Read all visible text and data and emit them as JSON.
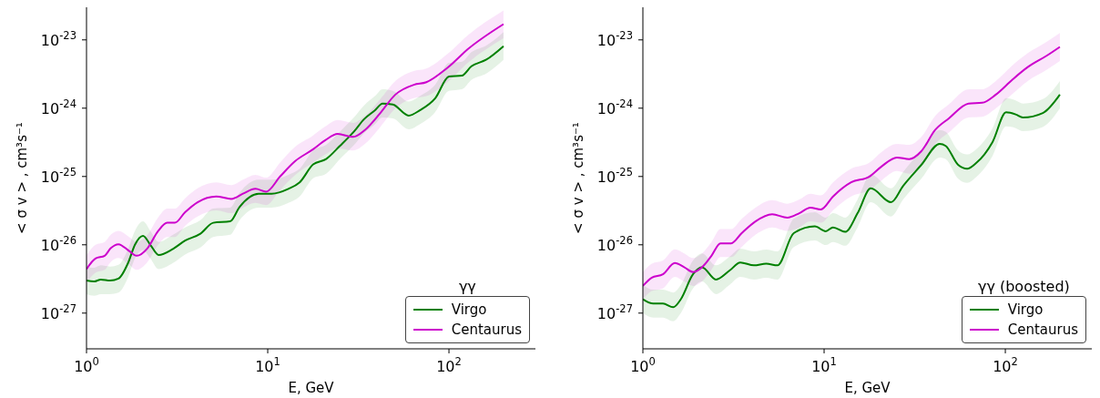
{
  "chart_data": [
    {
      "type": "line",
      "legend_title": "γγ",
      "xlabel": "E, GeV",
      "ylabel": "< σ v > , cm³s⁻¹",
      "log": "xy",
      "legend": "bottom right",
      "xlim": [
        1,
        300
      ],
      "xticks": [
        {
          "value": 1,
          "label": "10$^{0}$"
        },
        {
          "value": 10,
          "label": "10$^{1}$"
        },
        {
          "value": 100,
          "label": "10$^{2}$"
        }
      ],
      "ylim": [
        3e-28,
        3e-23
      ],
      "yticks": [
        {
          "value": 1e-27,
          "label": "10$^{-27}$"
        },
        {
          "value": 1e-26,
          "label": "10$^{-26}$"
        },
        {
          "value": 1e-25,
          "label": "10$^{-25}$"
        },
        {
          "value": 1e-24,
          "label": "10$^{-24}$"
        },
        {
          "value": 1e-23,
          "label": "10$^{-23}$"
        }
      ],
      "series": [
        {
          "name": "Virgo",
          "color": "#008000",
          "x": [
            1,
            1.1,
            1.2,
            1.35,
            1.5,
            1.7,
            1.85,
            2.05,
            2.25,
            2.5,
            3,
            3.5,
            4.25,
            5,
            6.2,
            7,
            8.9,
            10.5,
            13,
            15,
            17.8,
            21,
            25,
            30,
            34,
            39,
            43,
            49,
            60,
            69,
            84,
            100,
            118,
            133,
            160,
            200
          ],
          "values": [
            3e-27,
            2.9e-27,
            3.1e-27,
            3e-27,
            3.2e-27,
            5.5e-27,
            1e-26,
            1.35e-26,
            1e-26,
            7.1e-27,
            8.7e-27,
            1.15e-26,
            1.45e-26,
            2.1e-26,
            2.2e-26,
            3.6e-26,
            5.6e-26,
            5.6e-26,
            6.6e-26,
            8.2e-26,
            1.5e-25,
            1.8e-25,
            2.8e-25,
            4.6e-25,
            6.9e-25,
            9.3e-25,
            1.17e-24,
            1.13e-24,
            7.8e-25,
            9.3e-25,
            1.4e-24,
            2.9e-24,
            3e-24,
            4.1e-24,
            5.1e-24,
            8.1e-24
          ],
          "lower": [
            1.9e-27,
            1.8e-27,
            1.9e-27,
            1.9e-27,
            2e-27,
            3.4e-27,
            6.3e-27,
            8.4e-27,
            6.3e-27,
            4.4e-27,
            5.4e-27,
            7.2e-27,
            9.1e-27,
            1.3e-26,
            1.4e-26,
            2.3e-26,
            3.5e-26,
            3.5e-26,
            4.1e-26,
            5.1e-26,
            9.4e-26,
            1.1e-25,
            1.8e-25,
            2.9e-25,
            4.3e-25,
            5.8e-25,
            7.3e-25,
            7.1e-25,
            4.9e-25,
            5.8e-25,
            8.8e-25,
            1.8e-24,
            1.9e-24,
            2.6e-24,
            3.2e-24,
            5.1e-24
          ],
          "upper": [
            4.8e-27,
            4.6e-27,
            5e-27,
            4.8e-27,
            5.1e-27,
            8.8e-27,
            1.6e-26,
            2.2e-26,
            1.6e-26,
            1.1e-26,
            1.4e-26,
            1.8e-26,
            2.3e-26,
            3.4e-26,
            3.5e-26,
            5.8e-26,
            9e-26,
            9e-26,
            1.06e-25,
            1.3e-25,
            2.4e-25,
            2.9e-25,
            4.5e-25,
            7.4e-25,
            1.1e-24,
            1.5e-24,
            1.9e-24,
            1.8e-24,
            1.25e-24,
            1.5e-24,
            2.2e-24,
            4.6e-24,
            4.8e-24,
            6.6e-24,
            8.2e-24,
            1.3e-23
          ]
        },
        {
          "name": "Centaurus",
          "color": "#cc00cc",
          "x": [
            1,
            1.12,
            1.26,
            1.36,
            1.5,
            1.72,
            1.89,
            2.17,
            2.48,
            2.79,
            3.07,
            3.5,
            4.1,
            5.2,
            6.3,
            7.3,
            8.55,
            9.8,
            11.7,
            14.1,
            17.8,
            20.8,
            24.3,
            29.6,
            34.4,
            41.8,
            50.6,
            64,
            75,
            98,
            127,
            200
          ],
          "values": [
            4.4e-27,
            6.3e-27,
            6.9e-27,
            8.9e-27,
            1.02e-26,
            8.1e-27,
            6.9e-27,
            8.9e-27,
            1.58e-26,
            2.1e-26,
            2.1e-26,
            3e-26,
            4.2e-26,
            5.1e-26,
            4.7e-26,
            5.6e-26,
            6.6e-26,
            6e-26,
            1e-25,
            1.66e-25,
            2.5e-25,
            3.4e-25,
            4.2e-25,
            3.8e-25,
            4.8e-25,
            8.5e-25,
            1.58e-24,
            2.2e-24,
            2.4e-24,
            3.9e-24,
            7.3e-24,
            1.7e-23
          ],
          "lower": [
            2.8e-27,
            3.9e-27,
            4.3e-27,
            5.6e-27,
            6.4e-27,
            5.1e-27,
            4.3e-27,
            5.6e-27,
            9.9e-27,
            1.3e-26,
            1.3e-26,
            1.9e-26,
            2.6e-26,
            3.2e-26,
            2.9e-26,
            3.5e-26,
            4.1e-26,
            3.8e-26,
            6.3e-26,
            1.04e-25,
            1.6e-25,
            2.1e-25,
            2.6e-25,
            2.4e-25,
            3e-25,
            5.3e-25,
            9.9e-25,
            1.4e-24,
            1.5e-24,
            2.4e-24,
            4.6e-24,
            1.06e-23
          ],
          "upper": [
            7e-27,
            1e-26,
            1.1e-26,
            1.4e-26,
            1.6e-26,
            1.3e-26,
            1.1e-26,
            1.4e-26,
            2.5e-26,
            3.4e-26,
            3.4e-26,
            4.8e-26,
            6.7e-26,
            8.2e-26,
            7.5e-26,
            9e-26,
            1.06e-25,
            9.6e-26,
            1.6e-25,
            2.7e-25,
            4e-25,
            5.4e-25,
            6.7e-25,
            6.1e-25,
            7.7e-25,
            1.36e-24,
            2.5e-24,
            3.5e-24,
            3.8e-24,
            6.2e-24,
            1.17e-23,
            2.7e-23
          ]
        }
      ]
    },
    {
      "type": "line",
      "legend_title": "γγ (boosted)",
      "xlabel": "E, GeV",
      "ylabel": "< σ v > , cm³s⁻¹",
      "log": "xy",
      "legend": "bottom right",
      "xlim": [
        1,
        300
      ],
      "xticks": [
        {
          "value": 1,
          "label": "10$^{0}$"
        },
        {
          "value": 10,
          "label": "10$^{1}$"
        },
        {
          "value": 100,
          "label": "10$^{2}$"
        }
      ],
      "ylim": [
        3e-28,
        3e-23
      ],
      "yticks": [
        {
          "value": 1e-27,
          "label": "10$^{-27}$"
        },
        {
          "value": 1e-26,
          "label": "10$^{-26}$"
        },
        {
          "value": 1e-25,
          "label": "10$^{-25}$"
        },
        {
          "value": 1e-24,
          "label": "10$^{-24}$"
        },
        {
          "value": 1e-23,
          "label": "10$^{-23}$"
        }
      ],
      "series": [
        {
          "name": "Virgo",
          "color": "#008000",
          "x": [
            1,
            1.14,
            1.29,
            1.47,
            1.62,
            1.89,
            2.12,
            2.53,
            3.01,
            3.45,
            4.1,
            4.79,
            5.53,
            6.8,
            8.89,
            10.2,
            11.2,
            13.1,
            15.3,
            18.1,
            23.4,
            27.3,
            34.4,
            43.4,
            46.9,
            54.9,
            61.6,
            69,
            85,
            101,
            114,
            125,
            161,
            200
          ],
          "values": [
            1.6e-27,
            1.38e-27,
            1.38e-27,
            1.22e-27,
            1.6e-27,
            3.7e-27,
            4.7e-27,
            3.1e-27,
            4.2e-27,
            5.5e-27,
            5e-27,
            5.3e-27,
            5e-27,
            1.48e-26,
            1.86e-26,
            1.58e-26,
            1.8e-26,
            1.55e-26,
            2.9e-26,
            6.7e-26,
            4.2e-26,
            7.3e-26,
            1.48e-25,
            3e-25,
            2.8e-25,
            1.48e-25,
            1.3e-25,
            1.57e-25,
            3.2e-25,
            8.7e-25,
            8.1e-25,
            7.3e-25,
            8.5e-25,
            1.58e-24
          ],
          "lower": [
            1e-27,
            8.6e-28,
            8.6e-28,
            7.6e-28,
            1e-27,
            2.3e-27,
            2.9e-27,
            1.9e-27,
            2.6e-27,
            3.4e-27,
            3.1e-27,
            3.3e-27,
            3.1e-27,
            9.3e-27,
            1.16e-26,
            9.9e-27,
            1.1e-26,
            9.7e-27,
            1.8e-26,
            4.2e-26,
            2.6e-26,
            4.6e-26,
            9.3e-26,
            1.9e-25,
            1.8e-25,
            9.3e-26,
            8.1e-26,
            9.8e-26,
            2e-25,
            5.4e-25,
            5.1e-25,
            4.6e-25,
            5.3e-25,
            9.9e-25
          ],
          "upper": [
            2.6e-27,
            2.2e-27,
            2.2e-27,
            2e-27,
            2.6e-27,
            5.9e-27,
            7.5e-27,
            5e-27,
            6.7e-27,
            8.8e-27,
            8e-27,
            8.5e-27,
            8e-27,
            2.4e-26,
            3e-26,
            2.5e-26,
            2.9e-26,
            2.5e-26,
            4.6e-26,
            1.07e-25,
            6.7e-26,
            1.17e-25,
            2.4e-25,
            4.8e-25,
            4.5e-25,
            2.4e-25,
            2.1e-25,
            2.5e-25,
            5.1e-25,
            1.4e-24,
            1.3e-24,
            1.17e-24,
            1.36e-24,
            2.5e-24
          ]
        },
        {
          "name": "Centaurus",
          "color": "#cc00cc",
          "x": [
            1,
            1.12,
            1.29,
            1.5,
            1.69,
            1.89,
            2.12,
            2.39,
            2.68,
            3.07,
            3.51,
            4.18,
            5.17,
            6.27,
            7.3,
            8.4,
            9.6,
            11.2,
            14.1,
            17.8,
            20.8,
            25.2,
            29.5,
            34.4,
            41,
            48.8,
            62.7,
            74.5,
            88.6,
            109,
            133,
            168,
            200
          ],
          "values": [
            2.5e-27,
            3.3e-27,
            3.7e-27,
            5.4e-27,
            4.7e-27,
            4e-27,
            4.7e-27,
            6.9e-27,
            1.05e-26,
            1.05e-26,
            1.48e-26,
            2.2e-26,
            2.8e-26,
            2.5e-26,
            2.9e-26,
            3.5e-26,
            3.3e-26,
            5.1e-26,
            8.2e-26,
            1e-25,
            1.41e-25,
            1.9e-25,
            1.8e-25,
            2.35e-25,
            4.8e-25,
            7.1e-25,
            1.17e-24,
            1.2e-24,
            1.58e-24,
            2.6e-24,
            4e-24,
            5.8e-24,
            7.9e-24
          ],
          "lower": [
            1.6e-27,
            2.1e-27,
            2.3e-27,
            3.4e-27,
            2.9e-27,
            2.5e-27,
            2.9e-27,
            4.3e-27,
            6.6e-27,
            6.6e-27,
            9.3e-27,
            1.4e-26,
            1.8e-26,
            1.6e-26,
            1.8e-26,
            2.2e-26,
            2.1e-26,
            3.2e-26,
            5.1e-26,
            6.3e-26,
            8.8e-26,
            1.2e-25,
            1.1e-25,
            1.5e-25,
            3e-25,
            4.4e-25,
            7.3e-25,
            7.5e-25,
            9.9e-25,
            1.6e-24,
            2.5e-24,
            3.6e-24,
            4.9e-24
          ],
          "upper": [
            4e-27,
            5.3e-27,
            5.9e-27,
            8.6e-27,
            7.5e-27,
            6.4e-27,
            7.5e-27,
            1.1e-26,
            1.7e-26,
            1.7e-26,
            2.4e-26,
            3.5e-26,
            4.5e-26,
            4e-26,
            4.6e-26,
            5.6e-26,
            5.3e-26,
            8.2e-26,
            1.3e-25,
            1.6e-25,
            2.3e-25,
            3e-25,
            2.9e-25,
            3.8e-25,
            7.7e-25,
            1.14e-24,
            1.9e-24,
            1.9e-24,
            2.5e-24,
            4.2e-24,
            6.4e-24,
            9.3e-24,
            1.26e-23
          ]
        }
      ]
    }
  ]
}
